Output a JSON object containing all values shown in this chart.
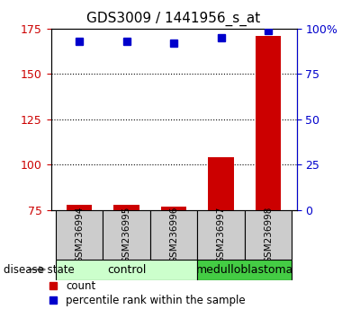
{
  "title": "GDS3009 / 1441956_s_at",
  "samples": [
    "GSM236994",
    "GSM236995",
    "GSM236996",
    "GSM236997",
    "GSM236998"
  ],
  "count_values": [
    78,
    78,
    77,
    104,
    171
  ],
  "percentile_values": [
    93,
    93,
    92,
    95,
    99
  ],
  "ylim_left": [
    75,
    175
  ],
  "ylim_right": [
    0,
    100
  ],
  "yticks_left": [
    75,
    100,
    125,
    150,
    175
  ],
  "yticks_right": [
    0,
    25,
    50,
    75,
    100
  ],
  "ytick_labels_right": [
    "0",
    "25",
    "50",
    "75",
    "100%"
  ],
  "bar_color": "#cc0000",
  "dot_color": "#0000cc",
  "groups": [
    {
      "label": "control",
      "color": "#ccffcc",
      "start": 0,
      "end": 2
    },
    {
      "label": "medulloblastoma",
      "color": "#44cc44",
      "start": 3,
      "end": 4
    }
  ],
  "disease_state_label": "disease state",
  "legend_count_label": "count",
  "legend_percentile_label": "percentile rank within the sample",
  "background_color": "#ffffff",
  "label_color_left": "#cc0000",
  "label_color_right": "#0000cc",
  "sample_box_color": "#cccccc",
  "bar_bottom": 75,
  "grid_dotted_at": [
    100,
    125,
    150
  ],
  "bar_width": 0.55
}
